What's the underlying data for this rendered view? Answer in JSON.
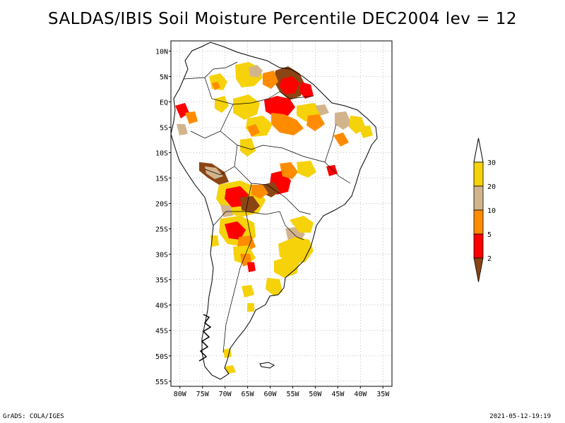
{
  "title": "SALDAS/IBIS Soil Moisture Percentile DEC2004 lev = 12",
  "footer": {
    "credit": "GrADS: COLA/IGES",
    "timestamp": "2021-05-12-19:19"
  },
  "map": {
    "lat_range": [
      -56,
      12
    ],
    "lon_range": [
      -82,
      -33
    ],
    "lat_ticks": [
      "10N",
      "5N",
      "EQ",
      "5S",
      "10S",
      "15S",
      "20S",
      "25S",
      "30S",
      "35S",
      "40S",
      "45S",
      "50S",
      "55S"
    ],
    "lat_values": [
      10,
      5,
      0,
      -5,
      -10,
      -15,
      -20,
      -25,
      -30,
      -35,
      -40,
      -45,
      -50,
      -55
    ],
    "lon_ticks": [
      "80W",
      "75W",
      "70W",
      "65W",
      "60W",
      "55W",
      "50W",
      "45W",
      "40W",
      "35W"
    ],
    "lon_values": [
      -80,
      -75,
      -70,
      -65,
      -60,
      -55,
      -50,
      -45,
      -40,
      -35
    ],
    "grid": true
  },
  "legend": {
    "labels": [
      "30",
      "20",
      "10",
      "5",
      "2"
    ],
    "colors": [
      "#f5d20a",
      "#d2b48c",
      "#ff8c00",
      "#ff0000",
      "#8b4513"
    ],
    "top_color": "#ffffff"
  },
  "colors": {
    "low": "#8b4513",
    "red": "#ff0000",
    "orange": "#ff8c00",
    "tan": "#d2b48c",
    "yellow": "#f5d20a"
  }
}
